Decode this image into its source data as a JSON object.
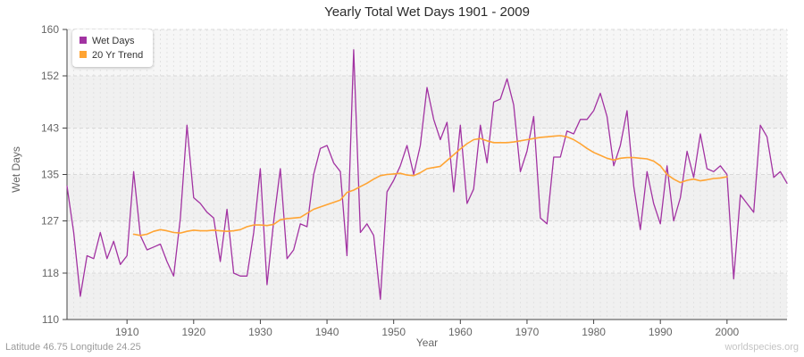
{
  "title": "Yearly Total Wet Days 1901 - 2009",
  "footer": {
    "left": "Latitude 46.75 Longitude 24.25",
    "right": "worldspecies.org"
  },
  "legend": [
    {
      "label": "Wet Days",
      "color": "#A233A2"
    },
    {
      "label": "20 Yr Trend",
      "color": "#FFA433"
    }
  ],
  "chart_data": {
    "type": "line",
    "title": "Yearly Total Wet Days 1901 - 2009",
    "xlabel": "Year",
    "ylabel": "Wet Days",
    "ylim": [
      110,
      160
    ],
    "xlim": [
      1901,
      2009
    ],
    "y_ticks": [
      110,
      118,
      127,
      135,
      143,
      152,
      160
    ],
    "x_ticks": [
      1910,
      1920,
      1930,
      1940,
      1950,
      1960,
      1970,
      1980,
      1990,
      2000
    ],
    "grid": "dashed, vertical every year, horizontal at y ticks, alternating gray bands",
    "legend_position": "top-left",
    "series": [
      {
        "name": "Wet Days",
        "color": "#A233A2",
        "start_year": 1901,
        "values": [
          133,
          125,
          114,
          121,
          120.5,
          125,
          120.5,
          123.5,
          119.5,
          121,
          135.5,
          124.5,
          122,
          122.5,
          123,
          120,
          117.5,
          127.5,
          143.5,
          131,
          130,
          128.5,
          127.5,
          120,
          129,
          118,
          117.5,
          117.5,
          125,
          136,
          116,
          127,
          136,
          120.5,
          122,
          126.5,
          126,
          135,
          139.5,
          140,
          137,
          135.5,
          121,
          156.5,
          125,
          126.5,
          124.5,
          113.5,
          132,
          134,
          136.5,
          140,
          135,
          140,
          150,
          144.5,
          141,
          144,
          132,
          143.5,
          130,
          132.5,
          143.5,
          137,
          147.5,
          148,
          151.5,
          147,
          135.5,
          139,
          145,
          127.5,
          126.5,
          138,
          138,
          142.5,
          142,
          144.5,
          144.5,
          146,
          149,
          145,
          136.5,
          140,
          146,
          133,
          125.5,
          135.5,
          130,
          126.5,
          136.5,
          127,
          131,
          139,
          134.5,
          142,
          136,
          135.5,
          136.5,
          135,
          117,
          131.5,
          130,
          128.5,
          143.5,
          141.5,
          134.5,
          135.5,
          133.5
        ]
      },
      {
        "name": "20 Yr Trend",
        "color": "#FFA433",
        "start_year": 1911,
        "values": [
          124.7,
          124.5,
          124.7,
          125.2,
          125.5,
          125.3,
          125.0,
          124.9,
          125.2,
          125.4,
          125.3,
          125.3,
          125.4,
          125.3,
          125.2,
          125.3,
          125.5,
          126.0,
          126.3,
          126.3,
          126.2,
          126.4,
          127.2,
          127.4,
          127.5,
          127.6,
          128.3,
          129.0,
          129.4,
          129.8,
          130.2,
          130.6,
          131.9,
          132.3,
          132.9,
          133.5,
          134.2,
          134.8,
          135.0,
          135.1,
          135.2,
          134.9,
          134.8,
          135.3,
          136.0,
          136.2,
          136.4,
          137.4,
          138.4,
          139.4,
          140.3,
          141.0,
          141.2,
          140.8,
          140.5,
          140.5,
          140.5,
          140.6,
          140.8,
          141.0,
          141.2,
          141.4,
          141.5,
          141.6,
          141.7,
          141.5,
          141.0,
          140.3,
          139.5,
          138.8,
          138.3,
          137.8,
          137.5,
          137.8,
          137.9,
          137.9,
          137.8,
          137.7,
          137.3,
          136.5,
          135.0,
          134.2,
          133.6,
          134.0,
          134.2,
          133.9,
          134.1,
          134.3,
          134.4,
          134.6
        ]
      }
    ]
  }
}
